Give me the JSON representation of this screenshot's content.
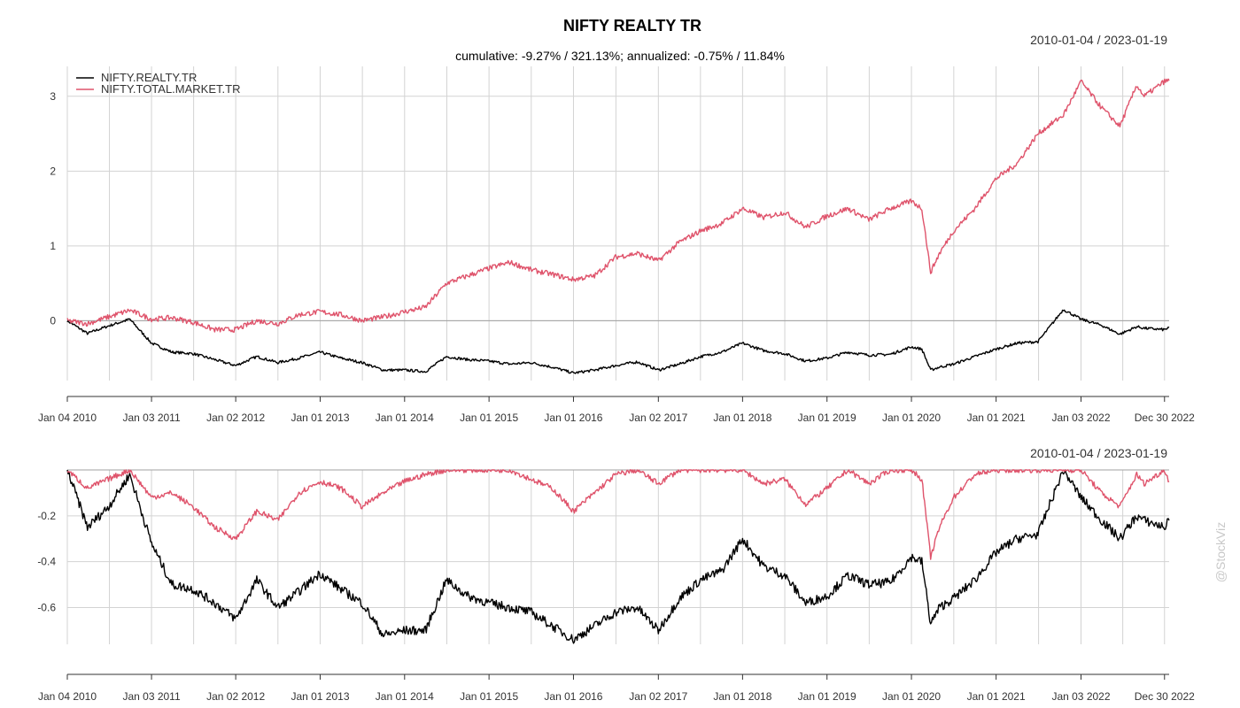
{
  "title": "NIFTY REALTY TR",
  "subtitle": "cumulative: -9.27% / 321.13%; annualized: -0.75% / 11.84%",
  "date_range": "2010-01-04 / 2023-01-19",
  "watermark": "@StockViz",
  "colors": {
    "realty": "#000000",
    "market": "#df536b",
    "grid": "#d3d3d3",
    "axis": "#333333"
  },
  "chart_data": [
    {
      "type": "line",
      "name": "cumulative-returns",
      "title": "NIFTY REALTY TR",
      "subtitle": "cumulative: -9.27% / 321.13%; annualized: -0.75% / 11.84%",
      "date_range": "2010-01-04 / 2023-01-19",
      "grid": true,
      "legend_position": "top-left",
      "x_tick_labels": [
        "Jan 04 2010",
        "Jan 03 2011",
        "Jan 02 2012",
        "Jan 01 2013",
        "Jan 01 2014",
        "Jan 01 2015",
        "Jan 01 2016",
        "Jan 02 2017",
        "Jan 01 2018",
        "Jan 01 2019",
        "Jan 01 2020",
        "Jan 01 2021",
        "Jan 03 2022",
        "Dec 30 2022"
      ],
      "x_range": [
        "2010-01-04",
        "2023-01-19"
      ],
      "y_ticks": [
        0,
        1,
        2,
        3
      ],
      "ylim": [
        -0.8,
        3.4
      ],
      "x": [
        "2010-01-04",
        "2010-04-01",
        "2010-07-01",
        "2010-10-01",
        "2011-01-03",
        "2011-04-01",
        "2011-07-01",
        "2011-10-03",
        "2012-01-02",
        "2012-04-02",
        "2012-07-02",
        "2012-10-01",
        "2013-01-01",
        "2013-04-01",
        "2013-07-01",
        "2013-10-01",
        "2014-01-01",
        "2014-04-01",
        "2014-07-01",
        "2014-10-01",
        "2015-01-01",
        "2015-04-01",
        "2015-07-01",
        "2015-10-01",
        "2016-01-01",
        "2016-04-01",
        "2016-07-01",
        "2016-10-03",
        "2017-01-02",
        "2017-04-03",
        "2017-07-03",
        "2017-10-03",
        "2018-01-01",
        "2018-04-02",
        "2018-07-02",
        "2018-10-01",
        "2019-01-01",
        "2019-04-01",
        "2019-07-01",
        "2019-10-01",
        "2020-01-01",
        "2020-02-15",
        "2020-03-24",
        "2020-05-01",
        "2020-07-01",
        "2020-10-01",
        "2021-01-01",
        "2021-04-01",
        "2021-07-01",
        "2021-10-19",
        "2022-01-03",
        "2022-04-01",
        "2022-06-20",
        "2022-09-01",
        "2022-10-03",
        "2022-12-30",
        "2023-01-19"
      ],
      "series": [
        {
          "name": "NIFTY.REALTY.TR",
          "values": [
            0.0,
            -0.17,
            -0.07,
            0.02,
            -0.3,
            -0.42,
            -0.44,
            -0.52,
            -0.6,
            -0.48,
            -0.56,
            -0.5,
            -0.42,
            -0.5,
            -0.56,
            -0.66,
            -0.66,
            -0.68,
            -0.48,
            -0.52,
            -0.54,
            -0.58,
            -0.56,
            -0.62,
            -0.7,
            -0.66,
            -0.6,
            -0.55,
            -0.66,
            -0.58,
            -0.48,
            -0.42,
            -0.3,
            -0.4,
            -0.44,
            -0.54,
            -0.5,
            -0.42,
            -0.46,
            -0.45,
            -0.35,
            -0.38,
            -0.66,
            -0.62,
            -0.58,
            -0.48,
            -0.38,
            -0.3,
            -0.28,
            0.15,
            0.02,
            -0.06,
            -0.18,
            -0.08,
            -0.1,
            -0.12,
            -0.09
          ]
        },
        {
          "name": "NIFTY.TOTAL.MARKET.TR",
          "values": [
            0.0,
            -0.04,
            0.05,
            0.14,
            0.02,
            0.04,
            -0.02,
            -0.12,
            -0.12,
            0.0,
            -0.04,
            0.08,
            0.12,
            0.08,
            0.0,
            0.05,
            0.12,
            0.18,
            0.5,
            0.6,
            0.7,
            0.78,
            0.68,
            0.62,
            0.55,
            0.6,
            0.85,
            0.9,
            0.8,
            1.05,
            1.2,
            1.3,
            1.5,
            1.38,
            1.45,
            1.25,
            1.4,
            1.5,
            1.35,
            1.5,
            1.6,
            1.5,
            0.65,
            0.9,
            1.2,
            1.5,
            1.9,
            2.1,
            2.5,
            2.75,
            3.2,
            2.85,
            2.6,
            3.15,
            3.0,
            3.2,
            3.21
          ]
        }
      ]
    },
    {
      "type": "line",
      "name": "drawdowns",
      "date_range": "2010-01-04 / 2023-01-19",
      "grid": true,
      "x_tick_labels": [
        "Jan 04 2010",
        "Jan 03 2011",
        "Jan 02 2012",
        "Jan 01 2013",
        "Jan 01 2014",
        "Jan 01 2015",
        "Jan 01 2016",
        "Jan 02 2017",
        "Jan 01 2018",
        "Jan 01 2019",
        "Jan 01 2020",
        "Jan 01 2021",
        "Jan 03 2022",
        "Dec 30 2022"
      ],
      "x_range": [
        "2010-01-04",
        "2023-01-19"
      ],
      "y_ticks": [
        -0.2,
        -0.4,
        -0.6
      ],
      "ylim": [
        -0.76,
        0.0
      ],
      "x": [
        "2010-01-04",
        "2010-04-01",
        "2010-07-01",
        "2010-10-01",
        "2011-01-03",
        "2011-04-01",
        "2011-07-01",
        "2011-10-03",
        "2012-01-02",
        "2012-04-02",
        "2012-07-02",
        "2012-10-01",
        "2013-01-01",
        "2013-04-01",
        "2013-07-01",
        "2013-10-01",
        "2014-01-01",
        "2014-04-01",
        "2014-07-01",
        "2014-10-01",
        "2015-01-01",
        "2015-04-01",
        "2015-07-01",
        "2015-10-01",
        "2016-01-01",
        "2016-04-01",
        "2016-07-01",
        "2016-10-03",
        "2017-01-02",
        "2017-04-03",
        "2017-07-03",
        "2017-10-03",
        "2018-01-01",
        "2018-04-02",
        "2018-07-02",
        "2018-10-01",
        "2019-01-01",
        "2019-04-01",
        "2019-07-01",
        "2019-10-01",
        "2020-01-01",
        "2020-02-15",
        "2020-03-24",
        "2020-05-01",
        "2020-07-01",
        "2020-10-01",
        "2021-01-01",
        "2021-04-01",
        "2021-07-01",
        "2021-10-19",
        "2022-01-03",
        "2022-04-01",
        "2022-06-20",
        "2022-09-01",
        "2022-10-03",
        "2022-12-30",
        "2023-01-19"
      ],
      "series": [
        {
          "name": "NIFTY.REALTY.TR",
          "values": [
            0.0,
            -0.25,
            -0.16,
            -0.02,
            -0.32,
            -0.5,
            -0.52,
            -0.58,
            -0.65,
            -0.48,
            -0.6,
            -0.53,
            -0.45,
            -0.52,
            -0.58,
            -0.72,
            -0.7,
            -0.7,
            -0.48,
            -0.55,
            -0.58,
            -0.6,
            -0.62,
            -0.68,
            -0.74,
            -0.68,
            -0.62,
            -0.6,
            -0.7,
            -0.56,
            -0.48,
            -0.44,
            -0.3,
            -0.42,
            -0.46,
            -0.58,
            -0.55,
            -0.46,
            -0.5,
            -0.49,
            -0.38,
            -0.4,
            -0.67,
            -0.6,
            -0.56,
            -0.48,
            -0.36,
            -0.3,
            -0.28,
            0.0,
            -0.12,
            -0.22,
            -0.3,
            -0.2,
            -0.22,
            -0.25,
            -0.22
          ]
        },
        {
          "name": "NIFTY.TOTAL.MARKET.TR",
          "values": [
            0.0,
            -0.08,
            -0.04,
            0.0,
            -0.12,
            -0.1,
            -0.16,
            -0.25,
            -0.3,
            -0.18,
            -0.22,
            -0.1,
            -0.05,
            -0.08,
            -0.16,
            -0.1,
            -0.05,
            -0.02,
            0.0,
            0.0,
            0.0,
            0.0,
            -0.04,
            -0.08,
            -0.18,
            -0.1,
            -0.02,
            0.0,
            -0.06,
            0.0,
            0.0,
            0.0,
            0.0,
            -0.06,
            -0.04,
            -0.15,
            -0.08,
            0.0,
            -0.06,
            0.0,
            0.0,
            -0.04,
            -0.38,
            -0.25,
            -0.12,
            -0.02,
            0.0,
            0.0,
            0.0,
            0.0,
            0.0,
            -0.1,
            -0.16,
            -0.02,
            -0.06,
            0.0,
            -0.05
          ]
        }
      ]
    }
  ]
}
